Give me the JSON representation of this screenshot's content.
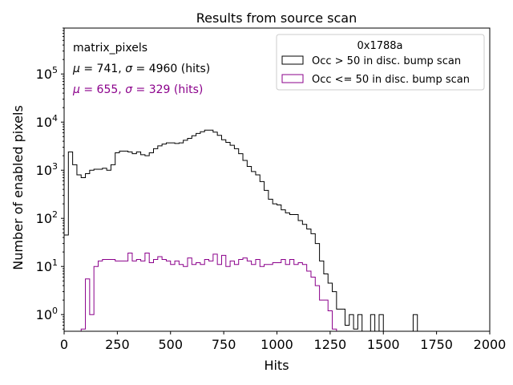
{
  "chart_data": {
    "type": "step-histogram",
    "title": "Results from source scan",
    "xlabel": "Hits",
    "ylabel": "Number of enabled pixels",
    "yscale": "log",
    "xlim": [
      0,
      2000
    ],
    "ylim": [
      0.45,
      900000
    ],
    "bin_width": 20,
    "x_ticks": [
      0,
      250,
      500,
      750,
      1000,
      1250,
      1500,
      1750,
      2000
    ],
    "x_tick_labels": [
      "0",
      "250",
      "500",
      "750",
      "1000",
      "1250",
      "1500",
      "1750",
      "2000"
    ],
    "y_ticks": [
      1,
      10,
      100,
      1000,
      10000,
      100000
    ],
    "y_tick_bases": [
      "10",
      "10",
      "10",
      "10",
      "10",
      "10"
    ],
    "y_tick_exps": [
      "0",
      "1",
      "2",
      "3",
      "4",
      "5"
    ],
    "annotations": {
      "name": "matrix_pixels",
      "stats": [
        {
          "mu_label": "μ",
          "mu_rest": " = 741, ",
          "sigma_label": "σ",
          "sigma_rest": " = 4960 (hits)",
          "color": "#000000"
        },
        {
          "mu_label": "μ",
          "mu_rest": " = 655, ",
          "sigma_label": "σ",
          "sigma_rest": " = 329 (hits)",
          "color": "#8b008b"
        }
      ]
    },
    "legend": {
      "title": "0x1788a",
      "position": "upper-right",
      "entries": [
        "Occ > 50 in disc. bump scan",
        "Occ <= 50 in disc. bump scan"
      ]
    },
    "series": [
      {
        "name": "Occ > 50 in disc. bump scan",
        "color": "#000000",
        "values": [
          45,
          2400,
          1300,
          800,
          700,
          850,
          1000,
          1050,
          1050,
          1100,
          1000,
          1300,
          2300,
          2500,
          2500,
          2400,
          2200,
          2400,
          2100,
          2000,
          2300,
          2800,
          3200,
          3500,
          3700,
          3700,
          3600,
          3700,
          4200,
          4600,
          5200,
          5800,
          6300,
          6800,
          6800,
          6200,
          5300,
          4300,
          3800,
          3300,
          2800,
          2200,
          1600,
          1200,
          940,
          800,
          580,
          380,
          250,
          200,
          190,
          150,
          130,
          120,
          120,
          90,
          75,
          60,
          48,
          30,
          13,
          7,
          4.5,
          3.0,
          1.3,
          1.3,
          0.6,
          1.0,
          0.5,
          1.0,
          0.4,
          0.4,
          1.0,
          0.3,
          1.0,
          0.3,
          0.3,
          0.3,
          0.3,
          0.3,
          0.3,
          0.3,
          1.0,
          0.3,
          0.3,
          0.3,
          0.3,
          0.3,
          0.3,
          0.3,
          0.3,
          0.3,
          0.3,
          0.3,
          0.3,
          0.3,
          0.3,
          0.3,
          0.3,
          0.3
        ]
      },
      {
        "name": "Occ <= 50 in disc. bump scan",
        "color": "#8b008b",
        "values": [
          0.3,
          0.3,
          0.3,
          0.3,
          0.5,
          5.5,
          1.0,
          10,
          13,
          14,
          14,
          14,
          13,
          13,
          13,
          19,
          13,
          14,
          13,
          19,
          12,
          14,
          16,
          14,
          13,
          11,
          13,
          11,
          10,
          15,
          11,
          12,
          11,
          14,
          13,
          18,
          11,
          17,
          10,
          13,
          11,
          14,
          15,
          13,
          11,
          14,
          10,
          11,
          11,
          12,
          12,
          14,
          11,
          14,
          11,
          12,
          11,
          8,
          6,
          4,
          2,
          2,
          1.2,
          0.5,
          0.3,
          0.3,
          0.3
        ]
      }
    ]
  }
}
